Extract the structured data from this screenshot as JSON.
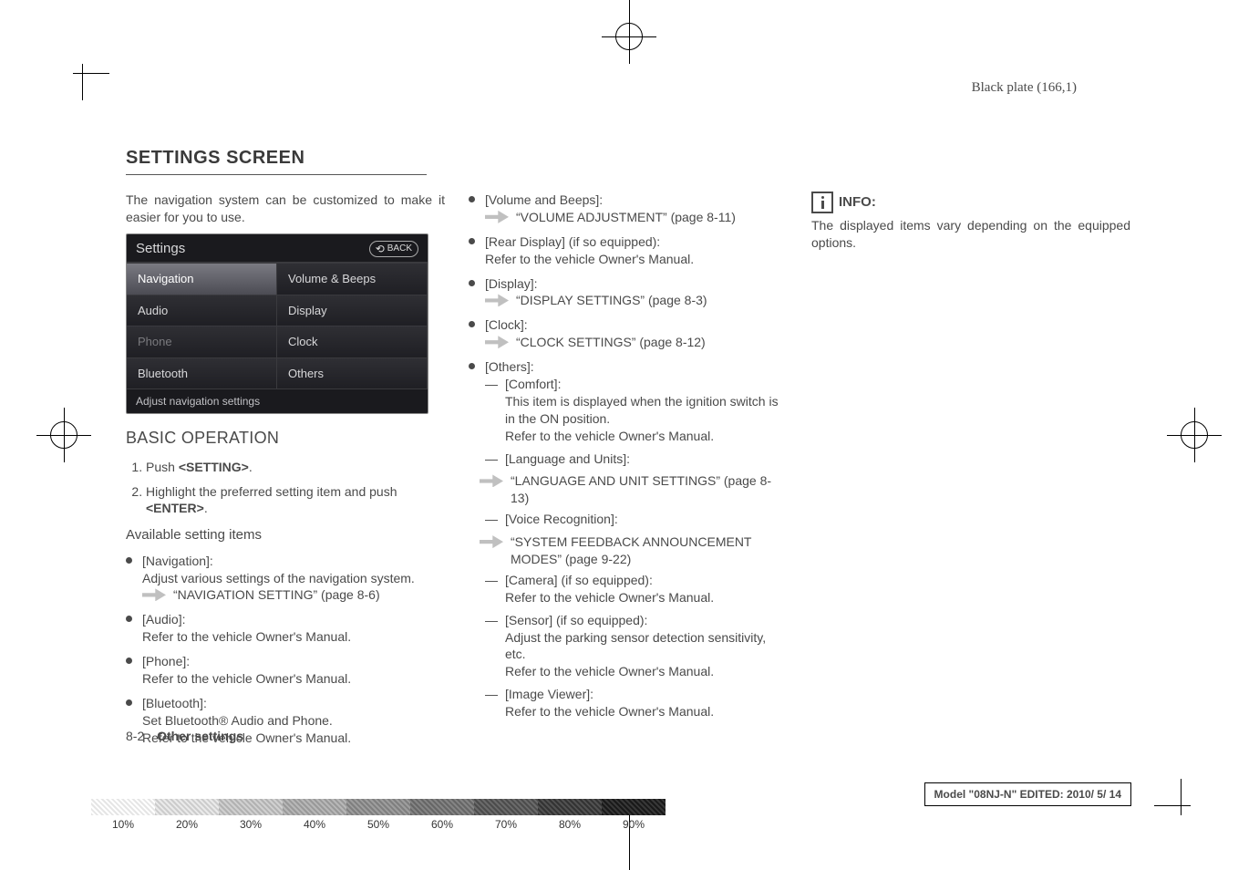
{
  "plate_label": "Black plate (166,1)",
  "section_title": "SETTINGS SCREEN",
  "intro": "The navigation system can be customized to make it easier for you to use.",
  "screenshot": {
    "title": "Settings",
    "back_label": "BACK",
    "cells": [
      {
        "label": "Navigation",
        "style": "sel"
      },
      {
        "label": "Volume & Beeps",
        "style": ""
      },
      {
        "label": "Audio",
        "style": ""
      },
      {
        "label": "Display",
        "style": ""
      },
      {
        "label": "Phone",
        "style": "dim"
      },
      {
        "label": "Clock",
        "style": ""
      },
      {
        "label": "Bluetooth",
        "style": ""
      },
      {
        "label": "Others",
        "style": ""
      }
    ],
    "footer": "Adjust navigation settings"
  },
  "basic_operation_heading": "BASIC OPERATION",
  "steps": [
    "Push <SETTING>.",
    "Highlight the preferred setting item and push <ENTER>."
  ],
  "available_heading": "Available setting items",
  "col1_items": [
    {
      "title": "[Navigation]:",
      "body": "Adjust various settings of the navigation system.",
      "ptr": "“NAVIGATION SETTING” (page 8-6)"
    },
    {
      "title": "[Audio]:",
      "body": "Refer to the vehicle Owner's Manual."
    },
    {
      "title": "[Phone]:",
      "body": "Refer to the vehicle Owner's Manual."
    },
    {
      "title": "[Bluetooth]:",
      "body": "Set Bluetooth® Audio and Phone.\nRefer to the vehicle Owner's Manual."
    }
  ],
  "col2_items": [
    {
      "title": "[Volume and Beeps]:",
      "ptr": "“VOLUME ADJUSTMENT” (page 8-11)"
    },
    {
      "title": "[Rear Display] (if so equipped):",
      "body": "Refer to the vehicle Owner's Manual."
    },
    {
      "title": "[Display]:",
      "ptr": "“DISPLAY SETTINGS” (page 8-3)"
    },
    {
      "title": "[Clock]:",
      "ptr": "“CLOCK SETTINGS” (page 8-12)"
    },
    {
      "title": "[Others]:",
      "dashes": [
        {
          "title": "[Comfort]:",
          "body": "This item is displayed when the ignition switch is in the ON position.\nRefer to the vehicle Owner's Manual."
        },
        {
          "title": "[Language and Units]:",
          "ptr": "“LANGUAGE AND UNIT SETTINGS” (page 8-13)"
        },
        {
          "title": "[Voice Recognition]:",
          "ptr": "“SYSTEM FEEDBACK ANNOUNCEMENT MODES” (page 9-22)"
        },
        {
          "title": "[Camera] (if so equipped):",
          "body": "Refer to the vehicle Owner's Manual."
        },
        {
          "title": "[Sensor] (if so equipped):",
          "body": "Adjust the parking sensor detection sensitivity, etc.\nRefer to the vehicle Owner's Manual."
        },
        {
          "title": "[Image Viewer]:",
          "body": "Refer to the vehicle Owner's Manual."
        }
      ]
    }
  ],
  "info_label": "INFO:",
  "info_body": "The displayed items vary depending on the equipped options.",
  "footer": {
    "page": "8-2",
    "chapter": "Other settings"
  },
  "gradient": {
    "labels": [
      "10%",
      "20%",
      "30%",
      "40%",
      "50%",
      "60%",
      "70%",
      "80%",
      "90%"
    ]
  },
  "model_box": "Model \"08NJ-N\"  EDITED:  2010/ 5/ 14"
}
